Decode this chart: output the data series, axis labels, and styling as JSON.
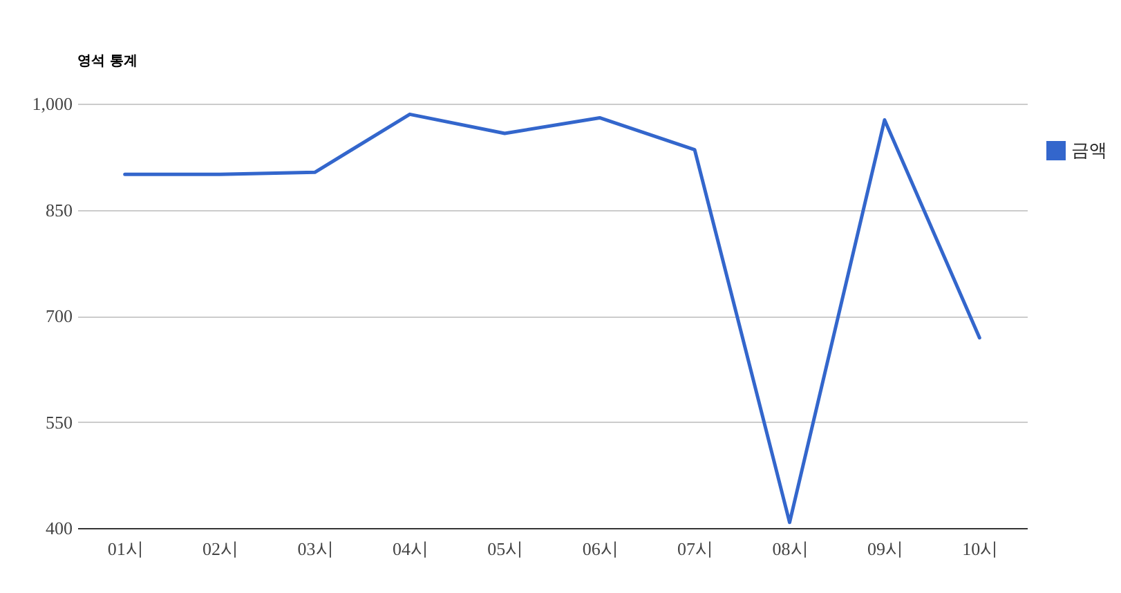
{
  "chart_data": {
    "type": "line",
    "title": "영석 통계",
    "categories": [
      "01시",
      "02시",
      "03시",
      "04시",
      "05시",
      "06시",
      "07시",
      "08시",
      "09시",
      "10시"
    ],
    "series": [
      {
        "name": "금액",
        "color": "#3366cc",
        "values": [
          900,
          900,
          903,
          985,
          958,
          980,
          935,
          408,
          977,
          669
        ]
      }
    ],
    "ylim": [
      400,
      1000
    ],
    "yticks": [
      400,
      550,
      700,
      850,
      {
        "value": 1000,
        "label": "1,000"
      }
    ],
    "grid": "y",
    "legend": "right",
    "line_style": "solid"
  }
}
